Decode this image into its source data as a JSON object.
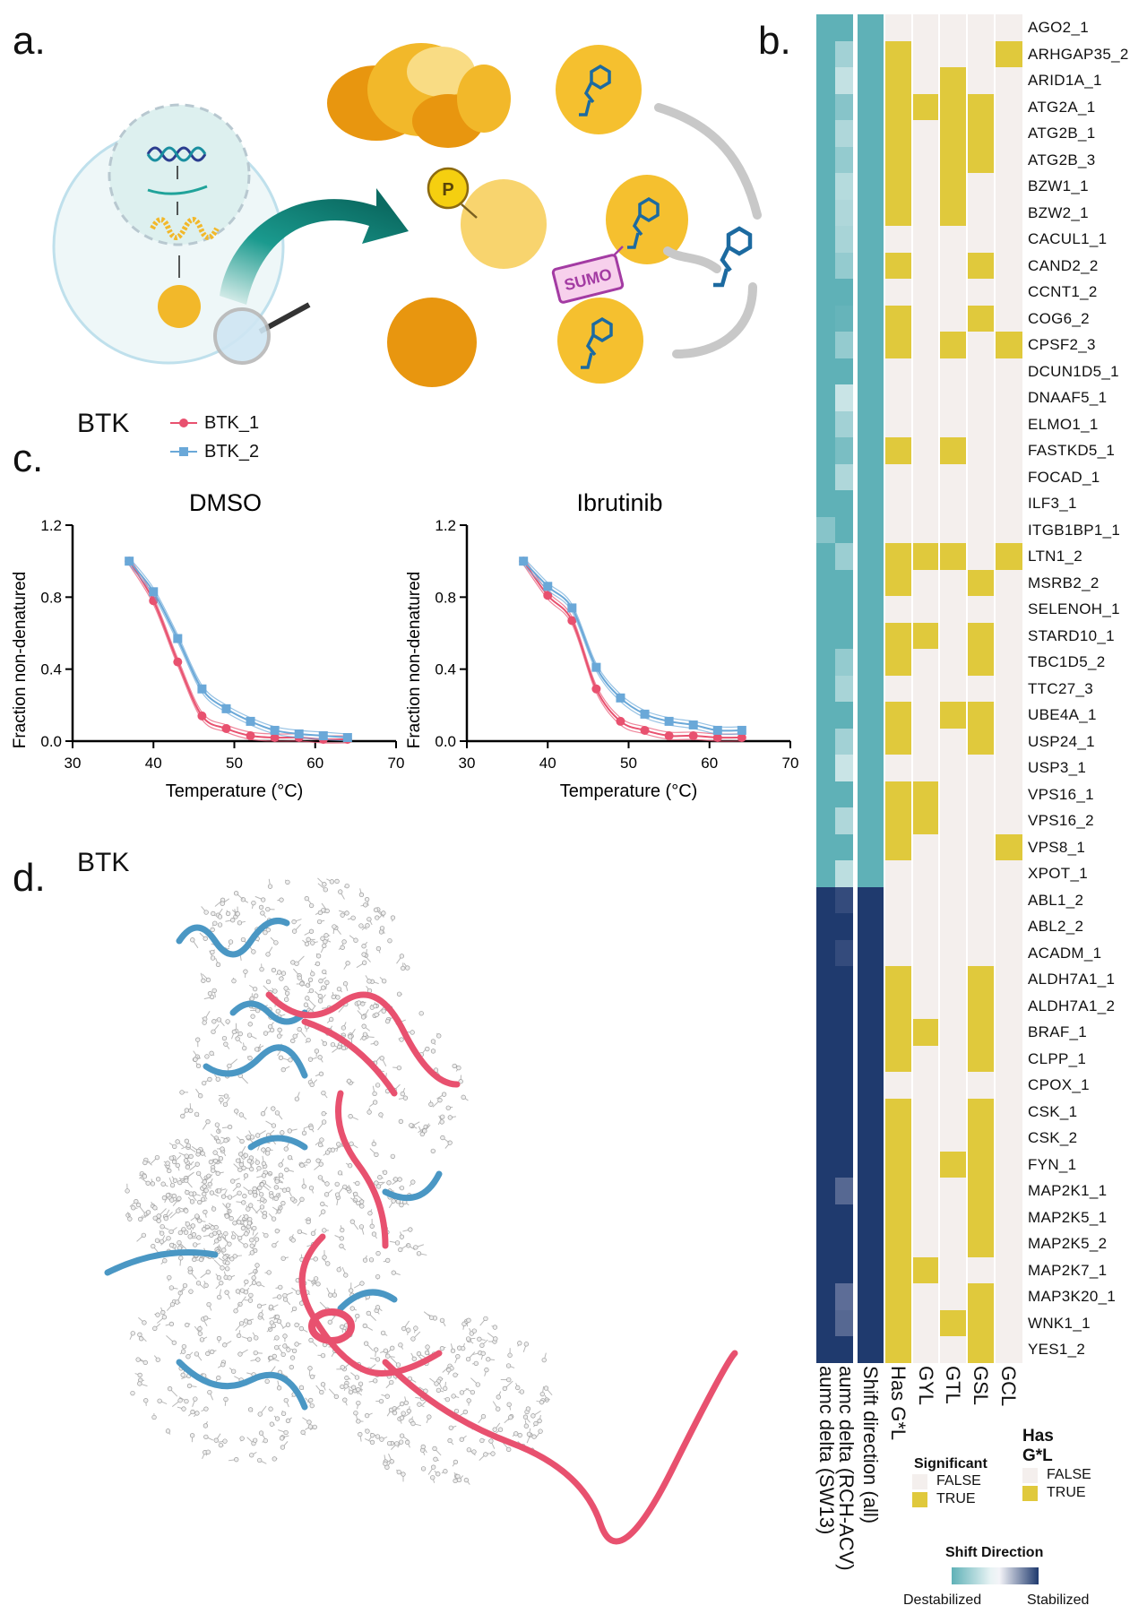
{
  "panels": {
    "a": "a.",
    "b": "b.",
    "c": "c.",
    "d": "d."
  },
  "illustration": {
    "phospho_label": "P",
    "sumo_label": "SUMO"
  },
  "panel_c": {
    "protein": "BTK",
    "legend": [
      "BTK_1",
      "BTK_2"
    ]
  },
  "panel_d": {
    "protein": "BTK"
  },
  "colors": {
    "btk1": "#e8516f",
    "btk2": "#6aa8d8",
    "destabilized": "#5fb1b7",
    "stabilized": "#1f3a6e",
    "true": "#e0c93c",
    "false": "#f4efed"
  },
  "chart_data": [
    {
      "type": "line",
      "title": "DMSO",
      "xlabel": "Temperature (°C)",
      "ylabel": "Fraction non-denatured",
      "xlim": [
        30,
        70
      ],
      "ylim": [
        0,
        1.2
      ],
      "xticks": [
        "30",
        "40",
        "50",
        "60",
        "70"
      ],
      "yticks": [
        "0.0",
        "0.4",
        "0.8",
        "1.2"
      ],
      "x": [
        37,
        40,
        43,
        46,
        49,
        52,
        55,
        58,
        61,
        64
      ],
      "series": [
        {
          "name": "BTK_1",
          "values": [
            1.0,
            0.78,
            0.44,
            0.14,
            0.07,
            0.03,
            0.02,
            0.02,
            0.01,
            0.01
          ]
        },
        {
          "name": "BTK_2",
          "values": [
            1.0,
            0.83,
            0.57,
            0.29,
            0.18,
            0.11,
            0.06,
            0.04,
            0.03,
            0.02
          ]
        }
      ]
    },
    {
      "type": "line",
      "title": "Ibrutinib",
      "xlabel": "Temperature (°C)",
      "ylabel": "Fraction non-denatured",
      "xlim": [
        30,
        70
      ],
      "ylim": [
        0,
        1.2
      ],
      "xticks": [
        "30",
        "40",
        "50",
        "60",
        "70"
      ],
      "yticks": [
        "0.0",
        "0.4",
        "0.8",
        "1.2"
      ],
      "x": [
        37,
        40,
        43,
        46,
        49,
        52,
        55,
        58,
        61,
        64
      ],
      "series": [
        {
          "name": "BTK_1",
          "values": [
            1.0,
            0.81,
            0.67,
            0.29,
            0.11,
            0.06,
            0.03,
            0.03,
            0.02,
            0.02
          ]
        },
        {
          "name": "BTK_2",
          "values": [
            1.0,
            0.86,
            0.74,
            0.41,
            0.24,
            0.15,
            0.11,
            0.09,
            0.06,
            0.06
          ]
        }
      ]
    }
  ],
  "heatmap": {
    "columns": [
      "aumc delta (SW13)",
      "aumc delta (RCH-ACV)",
      "Shift direction (all)",
      "Has G*L",
      "GYL",
      "GTL",
      "GSL",
      "GCL"
    ],
    "rows": [
      {
        "label": "AGO2_1",
        "sw13": -1,
        "rch": -1,
        "shift": -1,
        "flags": [
          0,
          0,
          0,
          0,
          0
        ]
      },
      {
        "label": "ARHGAP35_2",
        "sw13": -1,
        "rch": -0.5,
        "shift": -1,
        "flags": [
          1,
          0,
          0,
          0,
          1
        ]
      },
      {
        "label": "ARID1A_1",
        "sw13": -1,
        "rch": -0.25,
        "shift": -1,
        "flags": [
          1,
          0,
          1,
          0,
          0
        ]
      },
      {
        "label": "ATG2A_1",
        "sw13": -1,
        "rch": -0.7,
        "shift": -1,
        "flags": [
          1,
          1,
          1,
          1,
          0
        ]
      },
      {
        "label": "ATG2B_1",
        "sw13": -1,
        "rch": -0.4,
        "shift": -1,
        "flags": [
          1,
          0,
          1,
          1,
          0
        ]
      },
      {
        "label": "ATG2B_3",
        "sw13": -1,
        "rch": -0.6,
        "shift": -1,
        "flags": [
          1,
          0,
          1,
          1,
          0
        ]
      },
      {
        "label": "BZW1_1",
        "sw13": -1,
        "rch": -0.35,
        "shift": -1,
        "flags": [
          1,
          0,
          1,
          0,
          0
        ]
      },
      {
        "label": "BZW2_1",
        "sw13": -1,
        "rch": -0.4,
        "shift": -1,
        "flags": [
          1,
          0,
          1,
          0,
          0
        ]
      },
      {
        "label": "CACUL1_1",
        "sw13": -1,
        "rch": -0.45,
        "shift": -1,
        "flags": [
          0,
          0,
          0,
          0,
          0
        ]
      },
      {
        "label": "CAND2_2",
        "sw13": -1,
        "rch": -0.6,
        "shift": -1,
        "flags": [
          1,
          0,
          0,
          1,
          0
        ]
      },
      {
        "label": "CCNT1_2",
        "sw13": -1,
        "rch": -1,
        "shift": -1,
        "flags": [
          0,
          0,
          0,
          0,
          0
        ]
      },
      {
        "label": "COG6_2",
        "sw13": -1,
        "rch": -0.95,
        "shift": -1,
        "flags": [
          1,
          0,
          0,
          1,
          0
        ]
      },
      {
        "label": "CPSF2_3",
        "sw13": -1,
        "rch": -0.6,
        "shift": -1,
        "flags": [
          1,
          0,
          1,
          0,
          1
        ]
      },
      {
        "label": "DCUN1D5_1",
        "sw13": -1,
        "rch": -1,
        "shift": -1,
        "flags": [
          0,
          0,
          0,
          0,
          0
        ]
      },
      {
        "label": "DNAAF5_1",
        "sw13": -1,
        "rch": -0.2,
        "shift": -1,
        "flags": [
          0,
          0,
          0,
          0,
          0
        ]
      },
      {
        "label": "ELMO1_1",
        "sw13": -1,
        "rch": -0.5,
        "shift": -1,
        "flags": [
          0,
          0,
          0,
          0,
          0
        ]
      },
      {
        "label": "FASTKD5_1",
        "sw13": -1,
        "rch": -0.8,
        "shift": -1,
        "flags": [
          1,
          0,
          1,
          0,
          0
        ]
      },
      {
        "label": "FOCAD_1",
        "sw13": -1,
        "rch": -0.4,
        "shift": -1,
        "flags": [
          0,
          0,
          0,
          0,
          0
        ]
      },
      {
        "label": "ILF3_1",
        "sw13": -1,
        "rch": -1,
        "shift": -1,
        "flags": [
          0,
          0,
          0,
          0,
          0
        ]
      },
      {
        "label": "ITGB1BP1_1",
        "sw13": -0.7,
        "rch": -1,
        "shift": -1,
        "flags": [
          0,
          0,
          0,
          0,
          0
        ]
      },
      {
        "label": "LTN1_2",
        "sw13": -1,
        "rch": -0.55,
        "shift": -1,
        "flags": [
          1,
          1,
          1,
          0,
          1
        ]
      },
      {
        "label": "MSRB2_2",
        "sw13": -1,
        "rch": -1,
        "shift": -1,
        "flags": [
          1,
          0,
          0,
          1,
          0
        ]
      },
      {
        "label": "SELENOH_1",
        "sw13": -1,
        "rch": -1,
        "shift": -1,
        "flags": [
          0,
          0,
          0,
          0,
          0
        ]
      },
      {
        "label": "STARD10_1",
        "sw13": -1,
        "rch": -1,
        "shift": -1,
        "flags": [
          1,
          1,
          0,
          1,
          0
        ]
      },
      {
        "label": "TBC1D5_2",
        "sw13": -1,
        "rch": -0.6,
        "shift": -1,
        "flags": [
          1,
          0,
          0,
          1,
          0
        ]
      },
      {
        "label": "TTC27_3",
        "sw13": -1,
        "rch": -0.45,
        "shift": -1,
        "flags": [
          0,
          0,
          0,
          0,
          0
        ]
      },
      {
        "label": "UBE4A_1",
        "sw13": -1,
        "rch": -1,
        "shift": -1,
        "flags": [
          1,
          0,
          1,
          1,
          0
        ]
      },
      {
        "label": "USP24_1",
        "sw13": -1,
        "rch": -0.5,
        "shift": -1,
        "flags": [
          1,
          0,
          0,
          1,
          0
        ]
      },
      {
        "label": "USP3_1",
        "sw13": -1,
        "rch": -0.2,
        "shift": -1,
        "flags": [
          0,
          0,
          0,
          0,
          0
        ]
      },
      {
        "label": "VPS16_1",
        "sw13": -1,
        "rch": -1,
        "shift": -1,
        "flags": [
          1,
          1,
          0,
          0,
          0
        ]
      },
      {
        "label": "VPS16_2",
        "sw13": -1,
        "rch": -0.4,
        "shift": -1,
        "flags": [
          1,
          1,
          0,
          0,
          0
        ]
      },
      {
        "label": "VPS8_1",
        "sw13": -1,
        "rch": -1,
        "shift": -1,
        "flags": [
          1,
          0,
          0,
          0,
          1
        ]
      },
      {
        "label": "XPOT_1",
        "sw13": -1,
        "rch": -0.3,
        "shift": -1,
        "flags": [
          0,
          0,
          0,
          0,
          0
        ]
      },
      {
        "label": "ABL1_2",
        "sw13": 1,
        "rch": 0.85,
        "shift": 1,
        "flags": [
          0,
          0,
          0,
          0,
          0
        ]
      },
      {
        "label": "ABL2_2",
        "sw13": 1,
        "rch": 1,
        "shift": 1,
        "flags": [
          0,
          0,
          0,
          0,
          0
        ]
      },
      {
        "label": "ACADM_1",
        "sw13": 1,
        "rch": 0.85,
        "shift": 1,
        "flags": [
          0,
          0,
          0,
          0,
          0
        ]
      },
      {
        "label": "ALDH7A1_1",
        "sw13": 1,
        "rch": 1,
        "shift": 1,
        "flags": [
          1,
          0,
          0,
          1,
          0
        ]
      },
      {
        "label": "ALDH7A1_2",
        "sw13": 1,
        "rch": 1,
        "shift": 1,
        "flags": [
          1,
          0,
          0,
          1,
          0
        ]
      },
      {
        "label": "BRAF_1",
        "sw13": 1,
        "rch": 1,
        "shift": 1,
        "flags": [
          1,
          1,
          0,
          1,
          0
        ]
      },
      {
        "label": "CLPP_1",
        "sw13": 1,
        "rch": 1,
        "shift": 1,
        "flags": [
          1,
          0,
          0,
          1,
          0
        ]
      },
      {
        "label": "CPOX_1",
        "sw13": 1,
        "rch": 1,
        "shift": 1,
        "flags": [
          0,
          0,
          0,
          0,
          0
        ]
      },
      {
        "label": "CSK_1",
        "sw13": 1,
        "rch": 1,
        "shift": 1,
        "flags": [
          1,
          0,
          0,
          1,
          0
        ]
      },
      {
        "label": "CSK_2",
        "sw13": 1,
        "rch": 1,
        "shift": 1,
        "flags": [
          1,
          0,
          0,
          1,
          0
        ]
      },
      {
        "label": "FYN_1",
        "sw13": 1,
        "rch": 1,
        "shift": 1,
        "flags": [
          1,
          0,
          1,
          1,
          0
        ]
      },
      {
        "label": "MAP2K1_1",
        "sw13": 1,
        "rch": 0.6,
        "shift": 1,
        "flags": [
          1,
          0,
          0,
          1,
          0
        ]
      },
      {
        "label": "MAP2K5_1",
        "sw13": 1,
        "rch": 1,
        "shift": 1,
        "flags": [
          1,
          0,
          0,
          1,
          0
        ]
      },
      {
        "label": "MAP2K5_2",
        "sw13": 1,
        "rch": 1,
        "shift": 1,
        "flags": [
          1,
          0,
          0,
          1,
          0
        ]
      },
      {
        "label": "MAP2K7_1",
        "sw13": 1,
        "rch": 1,
        "shift": 1,
        "flags": [
          1,
          1,
          0,
          0,
          0
        ]
      },
      {
        "label": "MAP3K20_1",
        "sw13": 1,
        "rch": 0.55,
        "shift": 1,
        "flags": [
          1,
          0,
          0,
          1,
          0
        ]
      },
      {
        "label": "WNK1_1",
        "sw13": 1,
        "rch": 0.6,
        "shift": 1,
        "flags": [
          1,
          0,
          1,
          1,
          0
        ]
      },
      {
        "label": "YES1_2",
        "sw13": 1,
        "rch": 1,
        "shift": 1,
        "flags": [
          1,
          0,
          0,
          1,
          0
        ]
      }
    ],
    "legend_significant": {
      "title": "Significant",
      "items": [
        "FALSE",
        "TRUE"
      ]
    },
    "legend_hasgl": {
      "title_line1": "Has",
      "title_line2": "G*L",
      "items": [
        "FALSE",
        "TRUE"
      ]
    },
    "legend_shift": {
      "title": "Shift Direction",
      "low": "Destabilized",
      "high": "Stabilized"
    }
  }
}
